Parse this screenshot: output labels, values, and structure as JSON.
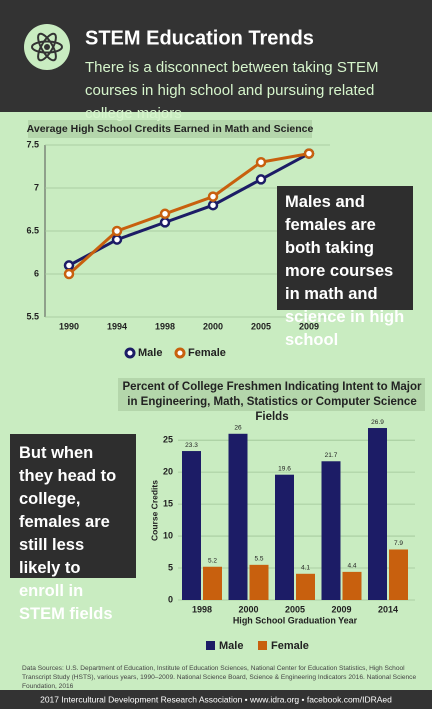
{
  "header": {
    "title": "STEM Education Trends",
    "subtitle": "There is a disconnect between taking STEM courses in high school and pursuing related college majors"
  },
  "chart_data": [
    {
      "type": "line",
      "title": "Average High School Credits Earned in Math and Science",
      "categories": [
        "1990",
        "1994",
        "1998",
        "2000",
        "2005",
        "2009"
      ],
      "series": [
        {
          "name": "Male",
          "color": "#1c1c66",
          "values": [
            6.1,
            6.4,
            6.6,
            6.8,
            7.1,
            7.4
          ]
        },
        {
          "name": "Female",
          "color": "#c8600e",
          "values": [
            6.0,
            6.5,
            6.7,
            6.9,
            7.3,
            7.4
          ]
        }
      ],
      "ylim": [
        5.5,
        7.5
      ],
      "yticks": [
        5.5,
        6,
        6.5,
        7,
        7.5
      ],
      "grid": true
    },
    {
      "type": "bar",
      "title": "Percent of College Freshmen Indicating Intent to Major in Engineering, Math, Statistics or Computer Science Fields",
      "x_label": "High School Graduation Year",
      "y_label": "Course Credits",
      "categories": [
        "1998",
        "2000",
        "2005",
        "2009",
        "2014"
      ],
      "series": [
        {
          "name": "Male",
          "color": "#1c1c66",
          "values": [
            23.3,
            26,
            19.6,
            21.7,
            26.9
          ]
        },
        {
          "name": "Female",
          "color": "#c8600e",
          "values": [
            5.2,
            5.5,
            4.1,
            4.4,
            7.9
          ]
        }
      ],
      "ylim": [
        0,
        28
      ],
      "yticks": [
        0,
        5,
        10,
        15,
        20,
        25
      ],
      "grid": true
    }
  ],
  "callouts": [
    "Males and females are both taking more courses in math and science in high school",
    "But when they head to college, females are still less likely to enroll in STEM fields"
  ],
  "sources": "Data Sources: U.S. Department of Education, Institute of Education Sciences, National Center for Education Statistics, High School Transcript Study (HSTS), various years, 1990–2009. National Science Board, Science & Engineering Indicators 2016. National Science Foundation, 2016",
  "footer": "2017 Intercultural Development Research Association • www.idra.org • facebook.com/IDRAed"
}
